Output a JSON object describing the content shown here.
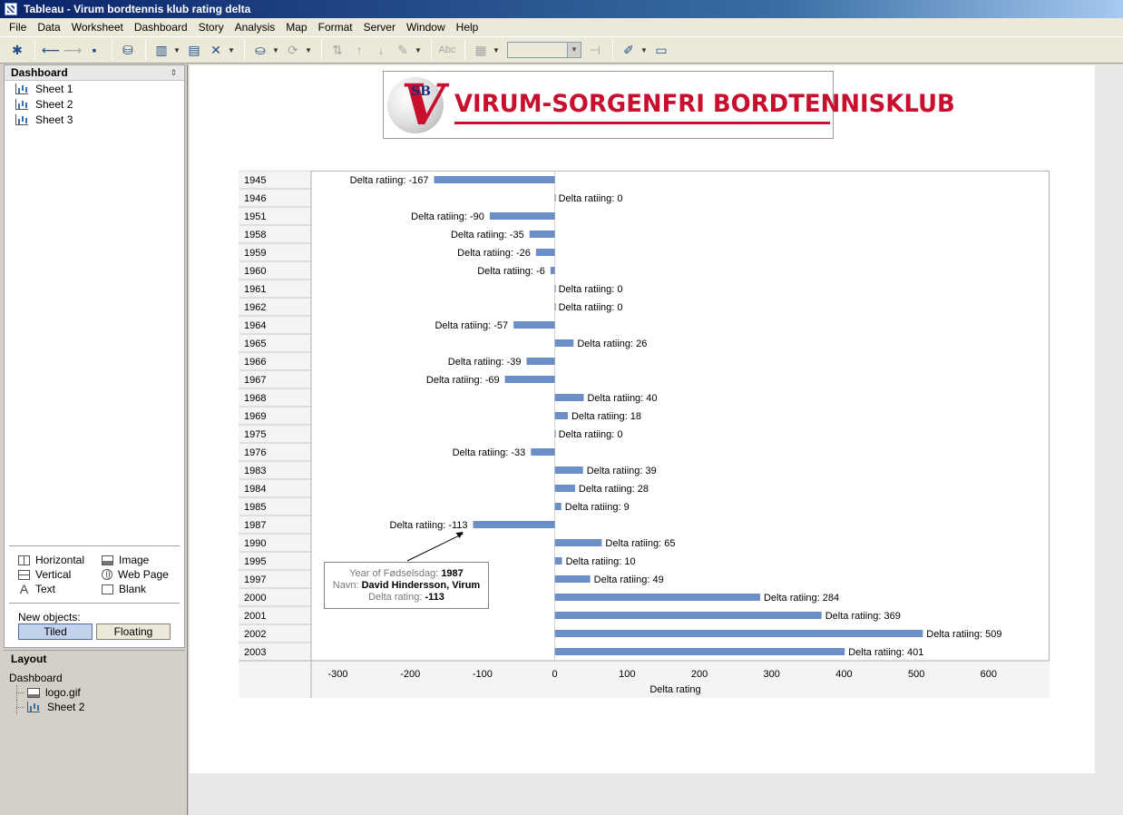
{
  "window": {
    "title": "Tableau - Virum bordtennis klub rating delta"
  },
  "menu": [
    "File",
    "Data",
    "Worksheet",
    "Dashboard",
    "Story",
    "Analysis",
    "Map",
    "Format",
    "Server",
    "Window",
    "Help"
  ],
  "toolbar": {
    "buttons": [
      {
        "icon": "tableau-logo-icon",
        "glyph": "✱",
        "enabled": true
      },
      {
        "icon": "back-arrow-icon",
        "glyph": "⟵",
        "enabled": true
      },
      {
        "icon": "forward-arrow-icon",
        "glyph": "⟶",
        "enabled": false
      },
      {
        "icon": "save-icon",
        "glyph": "▪",
        "enabled": true
      },
      {
        "icon": "new-data-source-icon",
        "glyph": "⛁",
        "enabled": true
      },
      {
        "icon": "new-worksheet-icon",
        "glyph": "▥",
        "enabled": true
      },
      {
        "icon": "duplicate-sheet-icon",
        "glyph": "▤",
        "enabled": true
      },
      {
        "icon": "clear-sheet-icon",
        "glyph": "✕",
        "enabled": true
      },
      {
        "icon": "pause-updates-icon",
        "glyph": "⛀",
        "enabled": true
      },
      {
        "icon": "refresh-icon",
        "glyph": "⟳",
        "enabled": false
      },
      {
        "icon": "swap-icon",
        "glyph": "⇅",
        "enabled": false
      },
      {
        "icon": "sort-ascending-icon",
        "glyph": "↑",
        "enabled": false
      },
      {
        "icon": "sort-descending-icon",
        "glyph": "↓",
        "enabled": false
      },
      {
        "icon": "highlight-icon",
        "glyph": "✎",
        "enabled": false
      },
      {
        "icon": "labels-icon",
        "glyph": "Abc",
        "enabled": false
      },
      {
        "icon": "fit-icon",
        "glyph": "▦",
        "enabled": false
      },
      {
        "icon": "pin-icon",
        "glyph": "⊣",
        "enabled": false
      },
      {
        "icon": "annotate-icon",
        "glyph": "✐",
        "enabled": true
      },
      {
        "icon": "presentation-icon",
        "glyph": "▭",
        "enabled": true
      }
    ]
  },
  "left_panel": {
    "dashboard_header": "Dashboard",
    "sheets": [
      "Sheet 1",
      "Sheet 2",
      "Sheet 3"
    ],
    "objects": {
      "horizontal": "Horizontal",
      "vertical": "Vertical",
      "text": "Text",
      "image": "Image",
      "web_page": "Web Page",
      "blank": "Blank"
    },
    "new_objects_label": "New objects:",
    "tiled": "Tiled",
    "floating": "Floating",
    "layout_header": "Layout",
    "layout_root": "Dashboard",
    "layout_children": [
      "logo.gif",
      "Sheet 2"
    ]
  },
  "logo": {
    "text": "VIRUM-SORGENFRI BORDTENNISKLUB",
    "mark": "V",
    "sub_mark": "SB"
  },
  "chart_data": {
    "type": "bar",
    "orientation": "horizontal",
    "categories": [
      "1945",
      "1946",
      "1951",
      "1958",
      "1959",
      "1960",
      "1961",
      "1962",
      "1964",
      "1965",
      "1966",
      "1967",
      "1968",
      "1969",
      "1975",
      "1976",
      "1983",
      "1984",
      "1985",
      "1987",
      "1990",
      "1995",
      "1997",
      "2000",
      "2001",
      "2002",
      "2003"
    ],
    "values": [
      -167,
      0,
      -90,
      -35,
      -26,
      -6,
      0,
      0,
      -57,
      26,
      -39,
      -69,
      40,
      18,
      0,
      -33,
      39,
      28,
      9,
      -113,
      65,
      10,
      49,
      284,
      369,
      509,
      401
    ],
    "label_prefix": "Delta ratiing: ",
    "xlabel": "Delta rating",
    "xlim": [
      -337,
      683
    ],
    "xticks": [
      -300,
      -200,
      -100,
      0,
      100,
      200,
      300,
      400,
      500,
      600
    ],
    "bar_color": "#6b8fc4"
  },
  "tooltip": {
    "k1": "Year of Fødselsdag:",
    "v1": "1987",
    "k2": "Navn:",
    "v2": "David Hindersson, Virum",
    "k3": "Delta rating:",
    "v3": "-113"
  }
}
